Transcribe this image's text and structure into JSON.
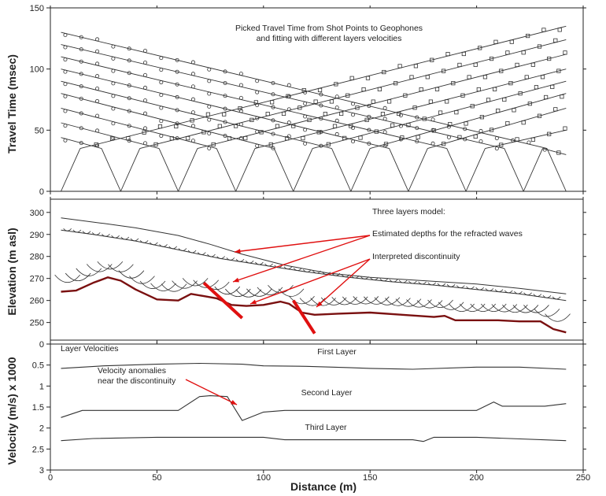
{
  "x_axis": {
    "label": "Distance (m)",
    "range": [
      0,
      250
    ],
    "ticks": [
      0,
      50,
      100,
      150,
      200,
      250
    ]
  },
  "colors": {
    "axis": "#222222",
    "line": "#333333",
    "surface": "#7a1010",
    "arrow": "#e01010"
  },
  "panels": [
    {
      "id": "travel_time",
      "ylabel": "Travel Time (msec)",
      "yrange": [
        0,
        150
      ],
      "yticks": [
        0,
        50,
        100,
        150
      ],
      "title_lines": [
        "Picked Travel Time from Shot Points to Geophones",
        "and fitting with different layers velocities"
      ]
    },
    {
      "id": "elevation",
      "ylabel": "Elevation (m asl)",
      "yrange": [
        242,
        306
      ],
      "yticks": [
        250,
        260,
        270,
        280,
        290,
        300
      ],
      "annotations": {
        "model": "Three layers model:",
        "depths": "Estimated depths for the refracted waves",
        "discontinuity": "Interpreted discontinuity"
      }
    },
    {
      "id": "velocity",
      "ylabel": "Velocity (m/s) x 1000",
      "yrange": [
        0,
        3
      ],
      "yticks": [
        0,
        0.5,
        1,
        1.5,
        2,
        2.5,
        3
      ],
      "inverted": true,
      "annotations": {
        "legend_title": "Layer Velocities",
        "first": "First Layer",
        "second": "Second Layer",
        "third": "Third Layer",
        "anomaly_line1": "Velocity anomalies",
        "anomaly_line2": "near the discontinuity"
      }
    }
  ],
  "chart_data": [
    {
      "type": "line",
      "title": "Picked Travel Time from Shot Points to Geophones and fitting with different layers velocities",
      "xlabel": "Distance (m)",
      "ylabel": "Travel Time (msec)",
      "xlim": [
        0,
        250
      ],
      "ylim": [
        0,
        150
      ],
      "shots": [
        {
          "x": 5,
          "dir": "forward"
        },
        {
          "x": 33,
          "dir": "both"
        },
        {
          "x": 60,
          "dir": "both"
        },
        {
          "x": 87,
          "dir": "both"
        },
        {
          "x": 114,
          "dir": "both"
        },
        {
          "x": 141,
          "dir": "both"
        },
        {
          "x": 168,
          "dir": "both"
        },
        {
          "x": 195,
          "dir": "both"
        },
        {
          "x": 222,
          "dir": "both"
        },
        {
          "x": 242,
          "dir": "reverse"
        }
      ],
      "reverse_branch_starts": [
        {
          "x": 5,
          "y": 130
        },
        {
          "x": 5,
          "y": 120
        },
        {
          "x": 5,
          "y": 110
        },
        {
          "x": 5,
          "y": 100
        },
        {
          "x": 5,
          "y": 90
        },
        {
          "x": 5,
          "y": 80
        },
        {
          "x": 5,
          "y": 68
        },
        {
          "x": 5,
          "y": 56
        },
        {
          "x": 5,
          "y": 44
        }
      ],
      "forward_branch_ends": [
        {
          "x": 242,
          "y": 135
        },
        {
          "x": 242,
          "y": 124
        },
        {
          "x": 242,
          "y": 112
        },
        {
          "x": 242,
          "y": 100
        },
        {
          "x": 242,
          "y": 90
        },
        {
          "x": 242,
          "y": 80
        },
        {
          "x": 242,
          "y": 68
        },
        {
          "x": 242,
          "y": 50
        },
        {
          "x": 242,
          "y": 30
        }
      ]
    },
    {
      "type": "line",
      "title": "Three layers model:",
      "xlabel": "Distance (m)",
      "ylabel": "Elevation (m asl)",
      "xlim": [
        0,
        250
      ],
      "ylim": [
        242,
        306
      ],
      "series": [
        {
          "name": "",
          "x": [
            5,
            25,
            40,
            60,
            75,
            90,
            110,
            130,
            150,
            175,
            200,
            220,
            242
          ],
          "y": [
            297.5,
            295,
            293,
            289.5,
            285.5,
            281,
            276,
            272.5,
            270.5,
            269,
            267.5,
            265.5,
            263
          ]
        },
        {
          "name": "",
          "x": [
            5,
            20,
            40,
            60,
            80,
            100,
            120,
            140,
            160,
            180,
            200,
            220,
            242
          ],
          "y": [
            292,
            290,
            287,
            283,
            279,
            276,
            273,
            270.5,
            268.5,
            267,
            265,
            263,
            260
          ]
        },
        {
          "name": "",
          "x": [
            5,
            12,
            20,
            27,
            33,
            40,
            50,
            60,
            66,
            72,
            78,
            85,
            92,
            100,
            108,
            112,
            118,
            124,
            135,
            150,
            165,
            180,
            185,
            190,
            200,
            210,
            220,
            230,
            236,
            242
          ],
          "y": [
            264,
            264.5,
            268,
            270.5,
            269,
            265,
            260.5,
            260,
            263,
            262,
            261,
            258,
            257.5,
            258,
            259.5,
            258.5,
            254.5,
            253.5,
            254,
            254.5,
            253.5,
            252.5,
            253,
            251,
            251,
            251,
            250.5,
            250.5,
            247,
            245.5
          ]
        }
      ],
      "discontinuities": [
        {
          "x": [
            72,
            90
          ],
          "y": [
            268,
            252
          ]
        },
        {
          "x": [
            114,
            124
          ],
          "y": [
            260,
            245
          ]
        }
      ]
    },
    {
      "type": "line",
      "title": "Layer Velocities",
      "xlabel": "Distance (m)",
      "ylabel": "Velocity (m/s) x 1000",
      "xlim": [
        0,
        250
      ],
      "ylim": [
        3,
        0
      ],
      "series": [
        {
          "name": "First Layer",
          "x": [
            5,
            25,
            50,
            70,
            90,
            100,
            120,
            140,
            150,
            170,
            200,
            220,
            242
          ],
          "y": [
            0.58,
            0.52,
            0.48,
            0.46,
            0.48,
            0.52,
            0.53,
            0.56,
            0.58,
            0.6,
            0.55,
            0.55,
            0.6
          ]
        },
        {
          "name": "Second Layer",
          "x": [
            5,
            15,
            60,
            70,
            75,
            83,
            90,
            100,
            110,
            130,
            150,
            170,
            200,
            208,
            212,
            220,
            232,
            242
          ],
          "y": [
            1.75,
            1.58,
            1.58,
            1.25,
            1.23,
            1.25,
            1.82,
            1.62,
            1.58,
            1.58,
            1.58,
            1.58,
            1.58,
            1.38,
            1.48,
            1.48,
            1.48,
            1.42
          ]
        },
        {
          "name": "Third Layer",
          "x": [
            5,
            20,
            50,
            100,
            110,
            170,
            175,
            180,
            200,
            242
          ],
          "y": [
            2.3,
            2.25,
            2.22,
            2.22,
            2.28,
            2.28,
            2.32,
            2.22,
            2.22,
            2.3
          ]
        }
      ]
    }
  ]
}
